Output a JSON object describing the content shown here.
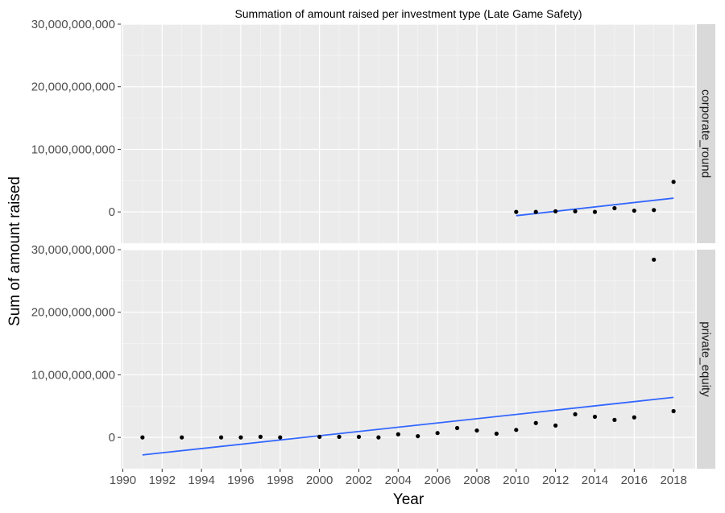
{
  "chart_data": {
    "type": "scatter",
    "title": "Summation of amount raised per investment type (Late Game Safety)",
    "xlabel": "Year",
    "ylabel": "Sum of amount raised",
    "xlim": [
      1989.9,
      2019.1
    ],
    "ylim": [
      -5000000000,
      30000000000
    ],
    "xticks": [
      1990,
      1992,
      1994,
      1996,
      1998,
      2000,
      2002,
      2004,
      2006,
      2008,
      2010,
      2012,
      2014,
      2016,
      2018
    ],
    "xtick_labels": [
      "1990",
      "1992",
      "1994",
      "1996",
      "1998",
      "2000",
      "2002",
      "2004",
      "2006",
      "2008",
      "2010",
      "2012",
      "2014",
      "2016",
      "2018"
    ],
    "yticks": [
      0,
      10000000000,
      20000000000,
      30000000000
    ],
    "ytick_labels": [
      "0",
      "10,000,000,000",
      "20,000,000,000",
      "30,000,000,000"
    ],
    "grid": true,
    "colors": {
      "panel": "#ebebeb",
      "grid_major": "#ffffff",
      "grid_minor": "#f7f7f7",
      "strip": "#d9d9d9",
      "point": "#000000",
      "trend": "#3366ff",
      "tick": "#333333"
    },
    "panels": [
      {
        "facet": "corporate_round",
        "points": {
          "x": [
            2010,
            2011,
            2012,
            2013,
            2014,
            2015,
            2016,
            2017,
            2018
          ],
          "y": [
            0,
            0,
            100000000,
            100000000,
            0,
            600000000,
            200000000,
            300000000,
            4800000000
          ]
        },
        "trend": {
          "x": [
            2010,
            2018
          ],
          "y": [
            -600000000,
            2200000000
          ]
        }
      },
      {
        "facet": "private_equity",
        "points": {
          "x": [
            1991,
            1993,
            1995,
            1996,
            1997,
            1998,
            2000,
            2001,
            2002,
            2003,
            2004,
            2005,
            2006,
            2007,
            2008,
            2009,
            2010,
            2011,
            2012,
            2013,
            2014,
            2015,
            2016,
            2017,
            2018
          ],
          "y": [
            0,
            0,
            0,
            0,
            100000000,
            0,
            100000000,
            100000000,
            100000000,
            0,
            500000000,
            200000000,
            700000000,
            1500000000,
            1100000000,
            600000000,
            1200000000,
            2300000000,
            1900000000,
            3700000000,
            3300000000,
            2800000000,
            3200000000,
            28400000000,
            4200000000
          ]
        },
        "trend": {
          "x": [
            1991,
            2018
          ],
          "y": [
            -2800000000,
            6400000000
          ]
        }
      }
    ]
  }
}
